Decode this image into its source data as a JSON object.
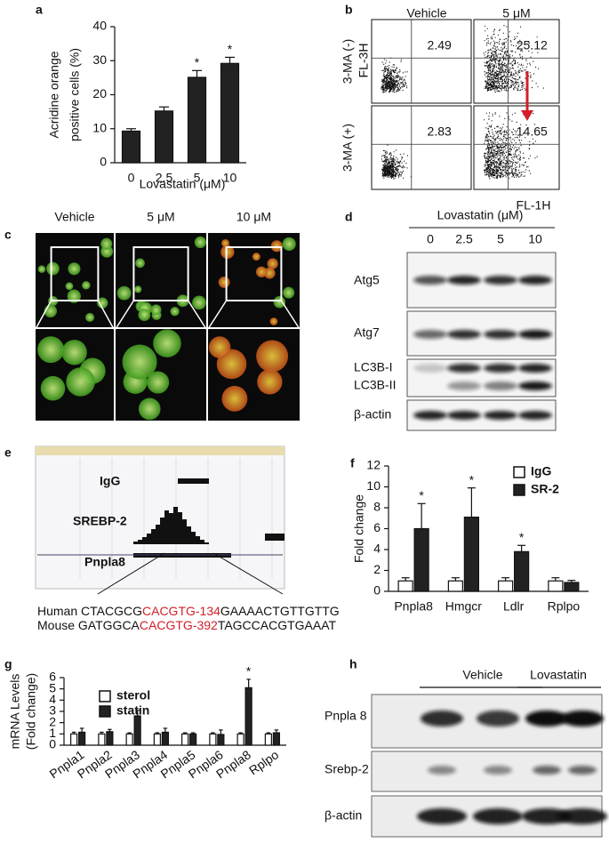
{
  "chart_data": [
    {
      "type": "bar",
      "label": "a",
      "categories": [
        "0",
        "2.5",
        "5",
        "10"
      ],
      "values": [
        9.3,
        15.2,
        25.1,
        29.2
      ],
      "errors": [
        0.7,
        1.2,
        2.0,
        1.8
      ],
      "color": "#222222",
      "ylim": [
        0,
        40
      ],
      "yticks": [
        0,
        10,
        20,
        30,
        40
      ],
      "ylabel": [
        "Acridine orange",
        "positive cells (%)"
      ],
      "xlabel": "Lovastatin (μM)",
      "annotations": [
        {
          "text": "*",
          "category": "5"
        },
        {
          "text": "*",
          "category": "10"
        }
      ]
    },
    {
      "type": "bar",
      "label": "f",
      "categories": [
        "Pnpla8",
        "Hmgcr",
        "Ldlr",
        "Rplpo"
      ],
      "series": [
        {
          "name": "IgG",
          "color": "#ffffff",
          "values": [
            1,
            1,
            1,
            1
          ],
          "errors": [
            0.3,
            0.3,
            0.3,
            0.3
          ]
        },
        {
          "name": "SR-2",
          "color": "#222222",
          "values": [
            6,
            7.1,
            3.8,
            0.85
          ],
          "errors": [
            2.4,
            2.8,
            0.6,
            0.2
          ]
        }
      ],
      "ylim": [
        0,
        12
      ],
      "yticks": [
        0,
        2,
        4,
        6,
        8,
        10,
        12
      ],
      "ylabel": "Fold change",
      "annotations": [
        {
          "text": "*",
          "category": "Pnpla8",
          "series": "SR-2"
        },
        {
          "text": "*",
          "category": "Hmgcr",
          "series": "SR-2"
        },
        {
          "text": "*",
          "category": "Ldlr",
          "series": "SR-2"
        }
      ]
    },
    {
      "type": "bar",
      "label": "g",
      "categories": [
        "Pnpla1",
        "Pnpla2",
        "Pnpla3",
        "Pnpla4",
        "Pnpla5",
        "Pnpla6",
        "Pnpla8",
        "Rplpo"
      ],
      "series": [
        {
          "name": "sterol",
          "color": "#ffffff",
          "values": [
            1,
            1,
            1,
            1,
            1,
            1,
            1,
            1
          ],
          "errors": [
            0.15,
            0.15,
            0.1,
            0.1,
            0.1,
            0.1,
            0.1,
            0.1
          ]
        },
        {
          "name": "statin",
          "color": "#222222",
          "values": [
            1.15,
            1.2,
            2.6,
            1.15,
            1.0,
            0.95,
            5.1,
            1.1
          ],
          "errors": [
            0.35,
            0.2,
            0.5,
            0.35,
            0.1,
            0.4,
            0.75,
            0.25
          ]
        }
      ],
      "ylim": [
        0,
        6
      ],
      "yticks": [
        0,
        1,
        2,
        3,
        4,
        5,
        6
      ],
      "ylabel": [
        "mRNA Levels",
        "(Fold change)"
      ],
      "annotations": [
        {
          "text": "*",
          "category": "Pnpla8",
          "series": "statin"
        }
      ]
    }
  ],
  "flow": {
    "label": "b",
    "columns": [
      "Vehicle",
      "5 μM"
    ],
    "rows": [
      "3-MA (-)",
      "3-MA (+)"
    ],
    "values": [
      [
        2.49,
        25.12
      ],
      [
        2.83,
        14.65
      ]
    ],
    "y_axis": "FL-3H",
    "x_axis": "FL-1H",
    "arrow_color": "#d0202a"
  },
  "micrographs": {
    "label": "c",
    "columns": [
      "Vehicle",
      "5 μM",
      "10 μM"
    ]
  },
  "blot_d": {
    "label": "d",
    "treatment": "Lovastatin (μM)",
    "doses": [
      "0",
      "2.5",
      "5",
      "10"
    ],
    "bands": [
      "Atg5",
      "Atg7",
      "LC3B-I",
      "LC3B-II",
      "β-actin"
    ]
  },
  "browser": {
    "label": "e",
    "tracks": [
      "IgG",
      "SREBP-2",
      "Pnpla8"
    ],
    "highlight_color": "#d0202a",
    "sequences": [
      {
        "species": "Human",
        "parts": [
          "CTACGCG",
          "CACGTG-134",
          "GAAAACTGTTGTTG"
        ]
      },
      {
        "species": "Mouse",
        "parts": [
          "GATGGCA",
          "CACGTG-392",
          "TAGCCACGTGAAAT"
        ]
      }
    ]
  },
  "blot_h": {
    "label": "h",
    "groups": [
      "Vehicle",
      "Lovastatin"
    ],
    "bands": [
      "Pnpla 8",
      "Srebp-2",
      "β-actin"
    ]
  }
}
